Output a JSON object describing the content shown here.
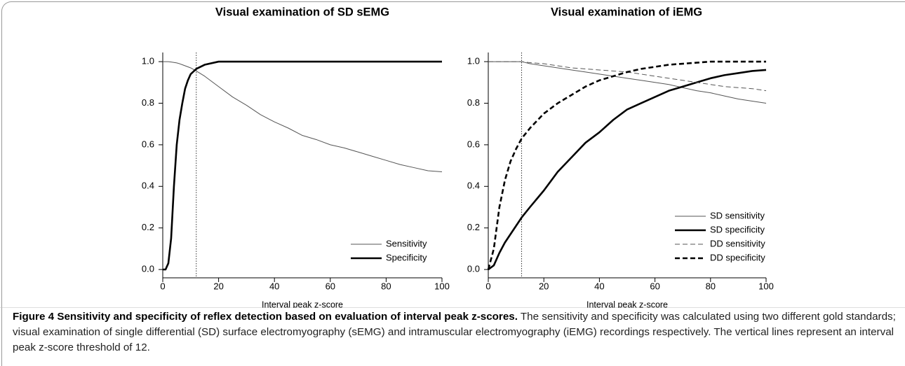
{
  "chart_data": [
    {
      "type": "line",
      "title": "Visual examination of SD sEMG",
      "xlabel": "Interval peak z-score",
      "x": [
        0,
        1,
        2,
        3,
        4,
        5,
        6,
        7,
        8,
        9,
        10,
        12,
        15,
        20,
        25,
        30,
        35,
        40,
        45,
        50,
        55,
        60,
        65,
        70,
        75,
        80,
        85,
        90,
        95,
        100
      ],
      "series": [
        {
          "name": "Sensitivity",
          "color": "#555555",
          "line_width": 1,
          "dash": "solid",
          "values": [
            1,
            1,
            1,
            0.998,
            0.996,
            0.994,
            0.99,
            0.985,
            0.98,
            0.975,
            0.97,
            0.955,
            0.93,
            0.88,
            0.83,
            0.79,
            0.745,
            0.71,
            0.68,
            0.645,
            0.625,
            0.6,
            0.585,
            0.565,
            0.545,
            0.525,
            0.505,
            0.49,
            0.475,
            0.47
          ]
        },
        {
          "name": "Specificity",
          "color": "#000000",
          "line_width": 2.6,
          "dash": "solid",
          "values": [
            0,
            0,
            0.03,
            0.15,
            0.4,
            0.6,
            0.72,
            0.8,
            0.87,
            0.91,
            0.94,
            0.965,
            0.985,
            1,
            1,
            1,
            1,
            1,
            1,
            1,
            1,
            1,
            1,
            1,
            1,
            1,
            1,
            1,
            1,
            1
          ]
        }
      ],
      "vline": 12,
      "xlim": [
        0,
        100
      ],
      "xticks": [
        0,
        20,
        40,
        60,
        80,
        100
      ],
      "ylim": [
        -0.04,
        1.044
      ],
      "yticks": [
        {
          "value": 0,
          "label": "0.0"
        },
        0.2,
        0.4,
        0.6,
        0.8,
        {
          "value": 1,
          "label": "1.0"
        }
      ],
      "legend": "lower right"
    },
    {
      "type": "line",
      "title": "Visual examination of iEMG",
      "xlabel": "Interval peak z-score",
      "x": [
        0,
        2,
        4,
        6,
        8,
        10,
        12,
        15,
        20,
        25,
        30,
        35,
        40,
        45,
        50,
        55,
        60,
        65,
        70,
        75,
        80,
        85,
        90,
        95,
        100
      ],
      "series": [
        {
          "name": "SD sensitivity",
          "color": "#555555",
          "line_width": 1,
          "dash": "solid",
          "values": [
            1,
            1,
            1,
            1,
            1,
            1,
            1,
            0.99,
            0.98,
            0.97,
            0.96,
            0.95,
            0.94,
            0.93,
            0.92,
            0.91,
            0.9,
            0.89,
            0.875,
            0.86,
            0.85,
            0.835,
            0.82,
            0.81,
            0.8
          ]
        },
        {
          "name": "SD specificity",
          "color": "#000000",
          "line_width": 2.6,
          "dash": "solid",
          "values": [
            0,
            0.02,
            0.08,
            0.13,
            0.17,
            0.21,
            0.25,
            0.3,
            0.38,
            0.47,
            0.54,
            0.61,
            0.66,
            0.72,
            0.77,
            0.8,
            0.83,
            0.86,
            0.88,
            0.9,
            0.92,
            0.935,
            0.945,
            0.955,
            0.96
          ]
        },
        {
          "name": "DD sensitivity",
          "color": "#555555",
          "line_width": 1,
          "dash": "dashed",
          "values": [
            1,
            1,
            1,
            1,
            1,
            1,
            1,
            0.995,
            0.99,
            0.98,
            0.97,
            0.965,
            0.96,
            0.955,
            0.95,
            0.94,
            0.93,
            0.92,
            0.91,
            0.9,
            0.89,
            0.88,
            0.875,
            0.87,
            0.86
          ]
        },
        {
          "name": "DD specificity",
          "color": "#000000",
          "line_width": 2.6,
          "dash": "dashed",
          "values": [
            0,
            0.1,
            0.3,
            0.43,
            0.52,
            0.58,
            0.63,
            0.68,
            0.75,
            0.8,
            0.84,
            0.88,
            0.91,
            0.93,
            0.95,
            0.965,
            0.975,
            0.985,
            0.99,
            0.995,
            1,
            1,
            1,
            1,
            1
          ]
        }
      ],
      "vline": 12,
      "xlim": [
        0,
        100
      ],
      "xticks": [
        0,
        20,
        40,
        60,
        80,
        100
      ],
      "ylim": [
        -0.04,
        1.044
      ],
      "yticks": [
        {
          "value": 0,
          "label": "0.0"
        },
        0.2,
        0.4,
        0.6,
        0.8,
        {
          "value": 1,
          "label": "1.0"
        }
      ],
      "legend": "lower right"
    }
  ],
  "caption": {
    "label": "Figure 4",
    "title": "Sensitivity and specificity of reflex detection based on evaluation of interval peak z-scores.",
    "text": "The sensitivity and specificity was calculated using two different gold standards; visual examination of single differential (SD) surface electromyography (sEMG) and intramuscular electromyography (iEMG) recordings respectively. The vertical lines represent an interval peak z-score threshold of 12."
  }
}
